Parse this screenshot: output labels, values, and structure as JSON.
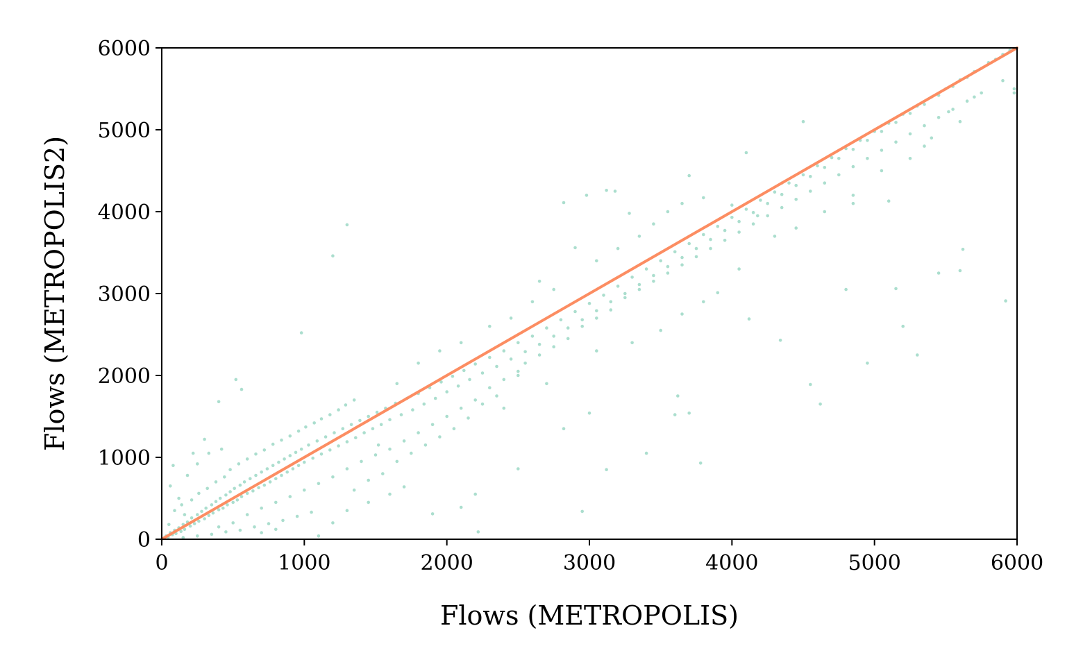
{
  "chart_data": {
    "type": "scatter",
    "xlabel": "Flows (METROPOLIS)",
    "ylabel": "Flows (METROPOLIS2)",
    "xlim": [
      0,
      6000
    ],
    "ylim": [
      0,
      6000
    ],
    "x_ticks": [
      "0",
      "1000",
      "2000",
      "3000",
      "4000",
      "5000",
      "6000"
    ],
    "y_ticks": [
      "0",
      "1000",
      "2000",
      "3000",
      "4000",
      "5000",
      "6000"
    ],
    "grid": false,
    "legend": "none",
    "point_color": "#66c2a5",
    "line_color": "#fc8d62",
    "reference_line": {
      "x": [
        0,
        6000
      ],
      "y": [
        0,
        6000
      ]
    },
    "points": [
      [
        30,
        40
      ],
      [
        45,
        25
      ],
      [
        60,
        80
      ],
      [
        75,
        55
      ],
      [
        90,
        110
      ],
      [
        100,
        70
      ],
      [
        120,
        140
      ],
      [
        135,
        95
      ],
      [
        150,
        180
      ],
      [
        160,
        120
      ],
      [
        180,
        210
      ],
      [
        200,
        160
      ],
      [
        210,
        260
      ],
      [
        230,
        190
      ],
      [
        250,
        300
      ],
      [
        260,
        220
      ],
      [
        280,
        340
      ],
      [
        300,
        250
      ],
      [
        310,
        380
      ],
      [
        330,
        290
      ],
      [
        350,
        420
      ],
      [
        360,
        320
      ],
      [
        380,
        460
      ],
      [
        400,
        360
      ],
      [
        410,
        500
      ],
      [
        430,
        380
      ],
      [
        450,
        540
      ],
      [
        460,
        420
      ],
      [
        480,
        580
      ],
      [
        500,
        450
      ],
      [
        510,
        620
      ],
      [
        530,
        480
      ],
      [
        550,
        660
      ],
      [
        560,
        520
      ],
      [
        580,
        700
      ],
      [
        600,
        560
      ],
      [
        620,
        740
      ],
      [
        640,
        590
      ],
      [
        660,
        780
      ],
      [
        680,
        630
      ],
      [
        700,
        820
      ],
      [
        720,
        660
      ],
      [
        740,
        860
      ],
      [
        760,
        700
      ],
      [
        780,
        900
      ],
      [
        800,
        740
      ],
      [
        820,
        940
      ],
      [
        840,
        780
      ],
      [
        860,
        980
      ],
      [
        880,
        820
      ],
      [
        900,
        1020
      ],
      [
        920,
        860
      ],
      [
        940,
        1060
      ],
      [
        960,
        900
      ],
      [
        980,
        1100
      ],
      [
        1000,
        940
      ],
      [
        1030,
        1150
      ],
      [
        1060,
        990
      ],
      [
        1090,
        1200
      ],
      [
        1120,
        1040
      ],
      [
        1150,
        1250
      ],
      [
        1180,
        1090
      ],
      [
        1210,
        1300
      ],
      [
        1240,
        1140
      ],
      [
        1270,
        1350
      ],
      [
        1300,
        1190
      ],
      [
        1330,
        1400
      ],
      [
        1360,
        1240
      ],
      [
        1390,
        1450
      ],
      [
        1420,
        1300
      ],
      [
        1450,
        1500
      ],
      [
        1480,
        1350
      ],
      [
        1510,
        1550
      ],
      [
        1540,
        1400
      ],
      [
        1570,
        1600
      ],
      [
        1600,
        1460
      ],
      [
        1640,
        1660
      ],
      [
        1680,
        1520
      ],
      [
        1720,
        1720
      ],
      [
        1760,
        1580
      ],
      [
        1800,
        1780
      ],
      [
        1840,
        1650
      ],
      [
        1880,
        1850
      ],
      [
        1920,
        1720
      ],
      [
        1960,
        1920
      ],
      [
        2000,
        1800
      ],
      [
        2040,
        1990
      ],
      [
        2080,
        1870
      ],
      [
        2120,
        2060
      ],
      [
        2160,
        1950
      ],
      [
        2200,
        2140
      ],
      [
        2250,
        2030
      ],
      [
        2300,
        2220
      ],
      [
        2350,
        2110
      ],
      [
        2400,
        2300
      ],
      [
        2450,
        2200
      ],
      [
        2500,
        2400
      ],
      [
        2550,
        2290
      ],
      [
        2600,
        2480
      ],
      [
        2650,
        2380
      ],
      [
        2700,
        2580
      ],
      [
        2750,
        2480
      ],
      [
        2800,
        2680
      ],
      [
        2850,
        2580
      ],
      [
        2900,
        2780
      ],
      [
        2950,
        2680
      ],
      [
        3000,
        2880
      ],
      [
        3050,
        2790
      ],
      [
        3100,
        2980
      ],
      [
        3150,
        2900
      ],
      [
        3200,
        3090
      ],
      [
        3250,
        3000
      ],
      [
        3300,
        3200
      ],
      [
        3350,
        3110
      ],
      [
        3400,
        3300
      ],
      [
        3450,
        3220
      ],
      [
        3500,
        3400
      ],
      [
        3550,
        3330
      ],
      [
        3600,
        3510
      ],
      [
        3650,
        3440
      ],
      [
        3700,
        3610
      ],
      [
        3750,
        3550
      ],
      [
        3800,
        3720
      ],
      [
        3850,
        3660
      ],
      [
        3900,
        3820
      ],
      [
        3950,
        3770
      ],
      [
        4000,
        3930
      ],
      [
        4050,
        3880
      ],
      [
        4100,
        4030
      ],
      [
        4150,
        3990
      ],
      [
        4200,
        4140
      ],
      [
        4250,
        4100
      ],
      [
        4300,
        4240
      ],
      [
        4350,
        4210
      ],
      [
        4400,
        4350
      ],
      [
        4450,
        4320
      ],
      [
        4500,
        4450
      ],
      [
        4550,
        4430
      ],
      [
        4600,
        4560
      ],
      [
        4650,
        4540
      ],
      [
        4700,
        4660
      ],
      [
        4750,
        4650
      ],
      [
        4800,
        4770
      ],
      [
        4850,
        4760
      ],
      [
        4900,
        4870
      ],
      [
        4950,
        4870
      ],
      [
        5000,
        4980
      ],
      [
        5050,
        4980
      ],
      [
        5100,
        5080
      ],
      [
        5150,
        5090
      ],
      [
        5200,
        5190
      ],
      [
        5250,
        5200
      ],
      [
        5300,
        5290
      ],
      [
        5350,
        5310
      ],
      [
        5400,
        5400
      ],
      [
        5450,
        5420
      ],
      [
        5500,
        5500
      ],
      [
        5550,
        5530
      ],
      [
        5600,
        5610
      ],
      [
        5650,
        5640
      ],
      [
        5700,
        5710
      ],
      [
        5750,
        5750
      ],
      [
        5800,
        5820
      ],
      [
        5850,
        5860
      ],
      [
        5900,
        5920
      ],
      [
        5950,
        5970
      ],
      [
        1300,
        3840
      ],
      [
        1200,
        3460
      ],
      [
        980,
        2520
      ],
      [
        520,
        1950
      ],
      [
        300,
        1220
      ],
      [
        220,
        1050
      ],
      [
        560,
        1830
      ],
      [
        400,
        1680
      ],
      [
        2820,
        4110
      ],
      [
        2980,
        4200
      ],
      [
        3120,
        4260
      ],
      [
        3180,
        4250
      ],
      [
        3280,
        3980
      ],
      [
        2650,
        3150
      ],
      [
        2900,
        3560
      ],
      [
        3700,
        4440
      ],
      [
        3800,
        4170
      ],
      [
        4000,
        4080
      ],
      [
        4180,
        3950
      ],
      [
        4350,
        4350
      ],
      [
        4500,
        5100
      ],
      [
        4100,
        4720
      ],
      [
        4850,
        4100
      ],
      [
        5100,
        4130
      ],
      [
        5350,
        4800
      ],
      [
        5520,
        5220
      ],
      [
        5700,
        5400
      ],
      [
        5980,
        5450
      ],
      [
        5980,
        5500
      ],
      [
        5900,
        5600
      ],
      [
        5920,
        2910
      ],
      [
        5620,
        3540
      ],
      [
        5300,
        2250
      ],
      [
        4950,
        2150
      ],
      [
        5200,
        2600
      ],
      [
        5450,
        3250
      ],
      [
        5600,
        3280
      ],
      [
        5150,
        3060
      ],
      [
        4800,
        3050
      ],
      [
        4550,
        1890
      ],
      [
        4620,
        1650
      ],
      [
        4340,
        2430
      ],
      [
        4120,
        2690
      ],
      [
        3900,
        3010
      ],
      [
        3620,
        1750
      ],
      [
        3700,
        1540
      ],
      [
        3780,
        930
      ],
      [
        3400,
        1050
      ],
      [
        3600,
        1520
      ],
      [
        3120,
        850
      ],
      [
        3000,
        1540
      ],
      [
        2950,
        340
      ],
      [
        2820,
        1350
      ],
      [
        2500,
        860
      ],
      [
        2200,
        550
      ],
      [
        2100,
        390
      ],
      [
        2220,
        90
      ],
      [
        1900,
        310
      ],
      [
        1700,
        640
      ],
      [
        1600,
        550
      ],
      [
        1450,
        720
      ],
      [
        1520,
        1150
      ],
      [
        1650,
        1900
      ],
      [
        1800,
        2150
      ],
      [
        1950,
        2300
      ],
      [
        2100,
        2400
      ],
      [
        2300,
        2600
      ],
      [
        2450,
        2700
      ],
      [
        2600,
        2900
      ],
      [
        2750,
        3050
      ],
      [
        3050,
        3400
      ],
      [
        3200,
        3550
      ],
      [
        3350,
        3700
      ],
      [
        3450,
        3850
      ],
      [
        3550,
        4000
      ],
      [
        3650,
        4100
      ],
      [
        2400,
        1600
      ],
      [
        2250,
        1650
      ],
      [
        2700,
        1900
      ],
      [
        2500,
        2000
      ],
      [
        3050,
        2300
      ],
      [
        3300,
        2400
      ],
      [
        3500,
        2550
      ],
      [
        3650,
        2750
      ],
      [
        3800,
        2900
      ],
      [
        4050,
        3300
      ],
      [
        4300,
        3700
      ],
      [
        4450,
        3800
      ],
      [
        4650,
        4000
      ],
      [
        4850,
        4200
      ],
      [
        5050,
        4500
      ],
      [
        5250,
        4650
      ],
      [
        5400,
        4900
      ],
      [
        5600,
        5100
      ],
      [
        120,
        500
      ],
      [
        60,
        650
      ],
      [
        180,
        780
      ],
      [
        250,
        920
      ],
      [
        330,
        1050
      ],
      [
        420,
        1100
      ],
      [
        80,
        900
      ],
      [
        160,
        300
      ],
      [
        50,
        180
      ],
      [
        90,
        350
      ],
      [
        140,
        420
      ],
      [
        210,
        480
      ],
      [
        260,
        560
      ],
      [
        320,
        620
      ],
      [
        380,
        700
      ],
      [
        440,
        760
      ],
      [
        480,
        850
      ],
      [
        540,
        920
      ],
      [
        600,
        980
      ],
      [
        660,
        1040
      ],
      [
        720,
        1090
      ],
      [
        780,
        1160
      ],
      [
        840,
        1210
      ],
      [
        900,
        1260
      ],
      [
        960,
        1320
      ],
      [
        1010,
        1370
      ],
      [
        1070,
        1420
      ],
      [
        1120,
        1470
      ],
      [
        1180,
        1520
      ],
      [
        1240,
        1580
      ],
      [
        1290,
        1640
      ],
      [
        1350,
        1700
      ],
      [
        400,
        150
      ],
      [
        500,
        200
      ],
      [
        600,
        300
      ],
      [
        700,
        380
      ],
      [
        800,
        450
      ],
      [
        900,
        520
      ],
      [
        1000,
        600
      ],
      [
        1100,
        680
      ],
      [
        1200,
        760
      ],
      [
        1300,
        860
      ],
      [
        1400,
        950
      ],
      [
        1500,
        1030
      ],
      [
        1600,
        1100
      ],
      [
        1700,
        1200
      ],
      [
        1800,
        1300
      ],
      [
        1900,
        1400
      ],
      [
        2000,
        1500
      ],
      [
        2100,
        1600
      ],
      [
        2200,
        1700
      ],
      [
        2300,
        1850
      ],
      [
        2400,
        1950
      ],
      [
        2500,
        2050
      ],
      [
        150,
        20
      ],
      [
        250,
        40
      ],
      [
        350,
        60
      ],
      [
        450,
        90
      ],
      [
        550,
        110
      ],
      [
        650,
        150
      ],
      [
        750,
        190
      ],
      [
        850,
        230
      ],
      [
        950,
        280
      ],
      [
        1050,
        330
      ],
      [
        700,
        80
      ],
      [
        800,
        120
      ],
      [
        1100,
        40
      ],
      [
        1200,
        200
      ],
      [
        1300,
        350
      ],
      [
        1350,
        600
      ],
      [
        1450,
        450
      ],
      [
        1550,
        800
      ],
      [
        1650,
        950
      ],
      [
        1750,
        1050
      ],
      [
        1850,
        1150
      ],
      [
        1950,
        1250
      ],
      [
        2050,
        1350
      ],
      [
        2150,
        1480
      ],
      [
        2350,
        1750
      ],
      [
        2550,
        2150
      ],
      [
        2650,
        2250
      ],
      [
        2750,
        2350
      ],
      [
        2850,
        2450
      ],
      [
        2950,
        2600
      ],
      [
        3050,
        2700
      ],
      [
        3150,
        2800
      ],
      [
        3250,
        2950
      ],
      [
        3350,
        3050
      ],
      [
        3450,
        3150
      ],
      [
        3550,
        3250
      ],
      [
        3650,
        3350
      ],
      [
        3750,
        3450
      ],
      [
        3850,
        3550
      ],
      [
        3950,
        3650
      ],
      [
        4050,
        3750
      ],
      [
        4150,
        3850
      ],
      [
        4250,
        3950
      ],
      [
        4350,
        4050
      ],
      [
        4450,
        4150
      ],
      [
        4550,
        4250
      ],
      [
        4650,
        4350
      ],
      [
        4750,
        4450
      ],
      [
        4850,
        4550
      ],
      [
        4950,
        4650
      ],
      [
        5050,
        4750
      ],
      [
        5150,
        4850
      ],
      [
        5250,
        4950
      ],
      [
        5350,
        5050
      ],
      [
        5450,
        5150
      ],
      [
        5550,
        5250
      ],
      [
        5650,
        5350
      ],
      [
        5750,
        5450
      ]
    ]
  }
}
